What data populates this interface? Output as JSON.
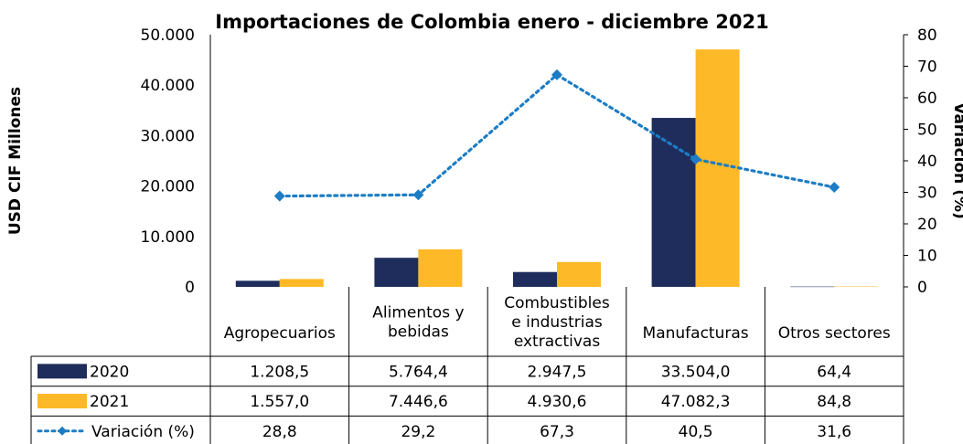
{
  "chart_data": {
    "type": "bar",
    "title": "Importaciones de Colombia enero - diciembre 2021",
    "ylabel": "USD CIF Millones",
    "y2label": "Variación (%)",
    "ylim": [
      0,
      50000
    ],
    "y2lim": [
      0,
      80
    ],
    "yticks": [
      "0",
      "10.000",
      "20.000",
      "30.000",
      "40.000",
      "50.000"
    ],
    "y2ticks": [
      "0",
      "10",
      "20",
      "30",
      "40",
      "50",
      "60",
      "70",
      "80"
    ],
    "categories": [
      [
        "Agropecuarios"
      ],
      [
        "Alimentos y",
        "bebidas"
      ],
      [
        "Combustibles",
        "e industrias",
        "extractivas"
      ],
      [
        "Manufacturas"
      ],
      [
        "Otros sectores"
      ]
    ],
    "series": [
      {
        "name": "2020",
        "kind": "bar",
        "color": "#1F2D5C",
        "values": [
          1208.5,
          5764.4,
          2947.5,
          33504.0,
          64.4
        ],
        "labels": [
          "1.208,5",
          "5.764,4",
          "2.947,5",
          "33.504,0",
          "64,4"
        ]
      },
      {
        "name": "2021",
        "kind": "bar",
        "color": "#FDB927",
        "values": [
          1557.0,
          7446.6,
          4930.6,
          47082.3,
          84.8
        ],
        "labels": [
          "1.557,0",
          "7.446,6",
          "4.930,6",
          "47.082,3",
          "84,8"
        ]
      },
      {
        "name": "Variación (%)",
        "kind": "line",
        "axis": "secondary",
        "color": "#1C7DC5",
        "values": [
          28.8,
          29.2,
          67.3,
          40.5,
          31.6
        ],
        "labels": [
          "28,8",
          "29,2",
          "67,3",
          "40,5",
          "31,6"
        ]
      }
    ]
  }
}
